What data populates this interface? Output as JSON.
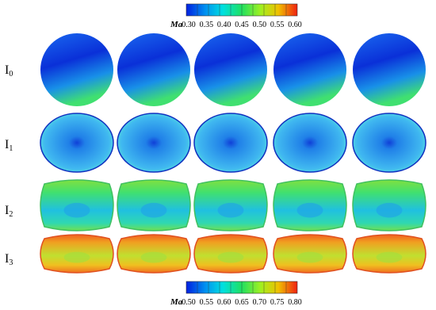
{
  "colorbars": [
    {
      "label": "Ma",
      "ticks": [
        "0.30",
        "0.35",
        "0.40",
        "0.45",
        "0.50",
        "0.55",
        "0.60"
      ]
    },
    {
      "label": "Ma",
      "ticks": [
        "0.50",
        "0.55",
        "0.60",
        "0.65",
        "0.70",
        "0.75",
        "0.80"
      ]
    }
  ],
  "rows": [
    {
      "letter": "I",
      "sub": "0"
    },
    {
      "letter": "I",
      "sub": "1"
    },
    {
      "letter": "I",
      "sub": "2"
    },
    {
      "letter": "I",
      "sub": "3"
    }
  ]
}
